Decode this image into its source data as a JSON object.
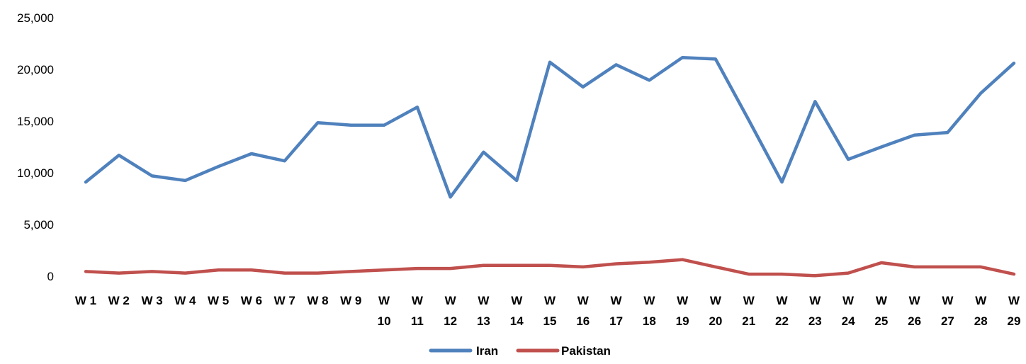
{
  "chart_data": {
    "type": "line",
    "categories": [
      "W 1",
      "W 2",
      "W 3",
      "W 4",
      "W 5",
      "W 6",
      "W 7",
      "W 8",
      "W 9",
      "W 10",
      "W 11",
      "W 12",
      "W 13",
      "W 14",
      "W 15",
      "W 16",
      "W 17",
      "W 18",
      "W 19",
      "W 20",
      "W 21",
      "W 22",
      "W 23",
      "W 24",
      "W 25",
      "W 26",
      "W 27",
      "W 28",
      "W 29"
    ],
    "series": [
      {
        "name": "Iran",
        "color": "#4F81BD",
        "values": [
          9100,
          11700,
          9700,
          9250,
          10600,
          11850,
          11150,
          14850,
          14600,
          14600,
          16350,
          7650,
          12000,
          9250,
          20700,
          18300,
          20450,
          18950,
          21150,
          21000,
          15100,
          9100,
          16900,
          11300,
          12500,
          13650,
          13900,
          17700,
          20600
        ]
      },
      {
        "name": "Pakistan",
        "color": "#C0504D",
        "values": [
          450,
          300,
          450,
          300,
          600,
          600,
          300,
          300,
          450,
          600,
          750,
          750,
          1050,
          1050,
          1050,
          900,
          1200,
          1350,
          1600,
          900,
          200,
          200,
          50,
          300,
          1300,
          900,
          900,
          900,
          200
        ]
      }
    ],
    "yticks": [
      "0",
      "5,000",
      "10,000",
      "15,000",
      "20,000",
      "25,000"
    ],
    "ylim": [
      0,
      25000
    ],
    "grid": false,
    "legend_position": "bottom"
  }
}
